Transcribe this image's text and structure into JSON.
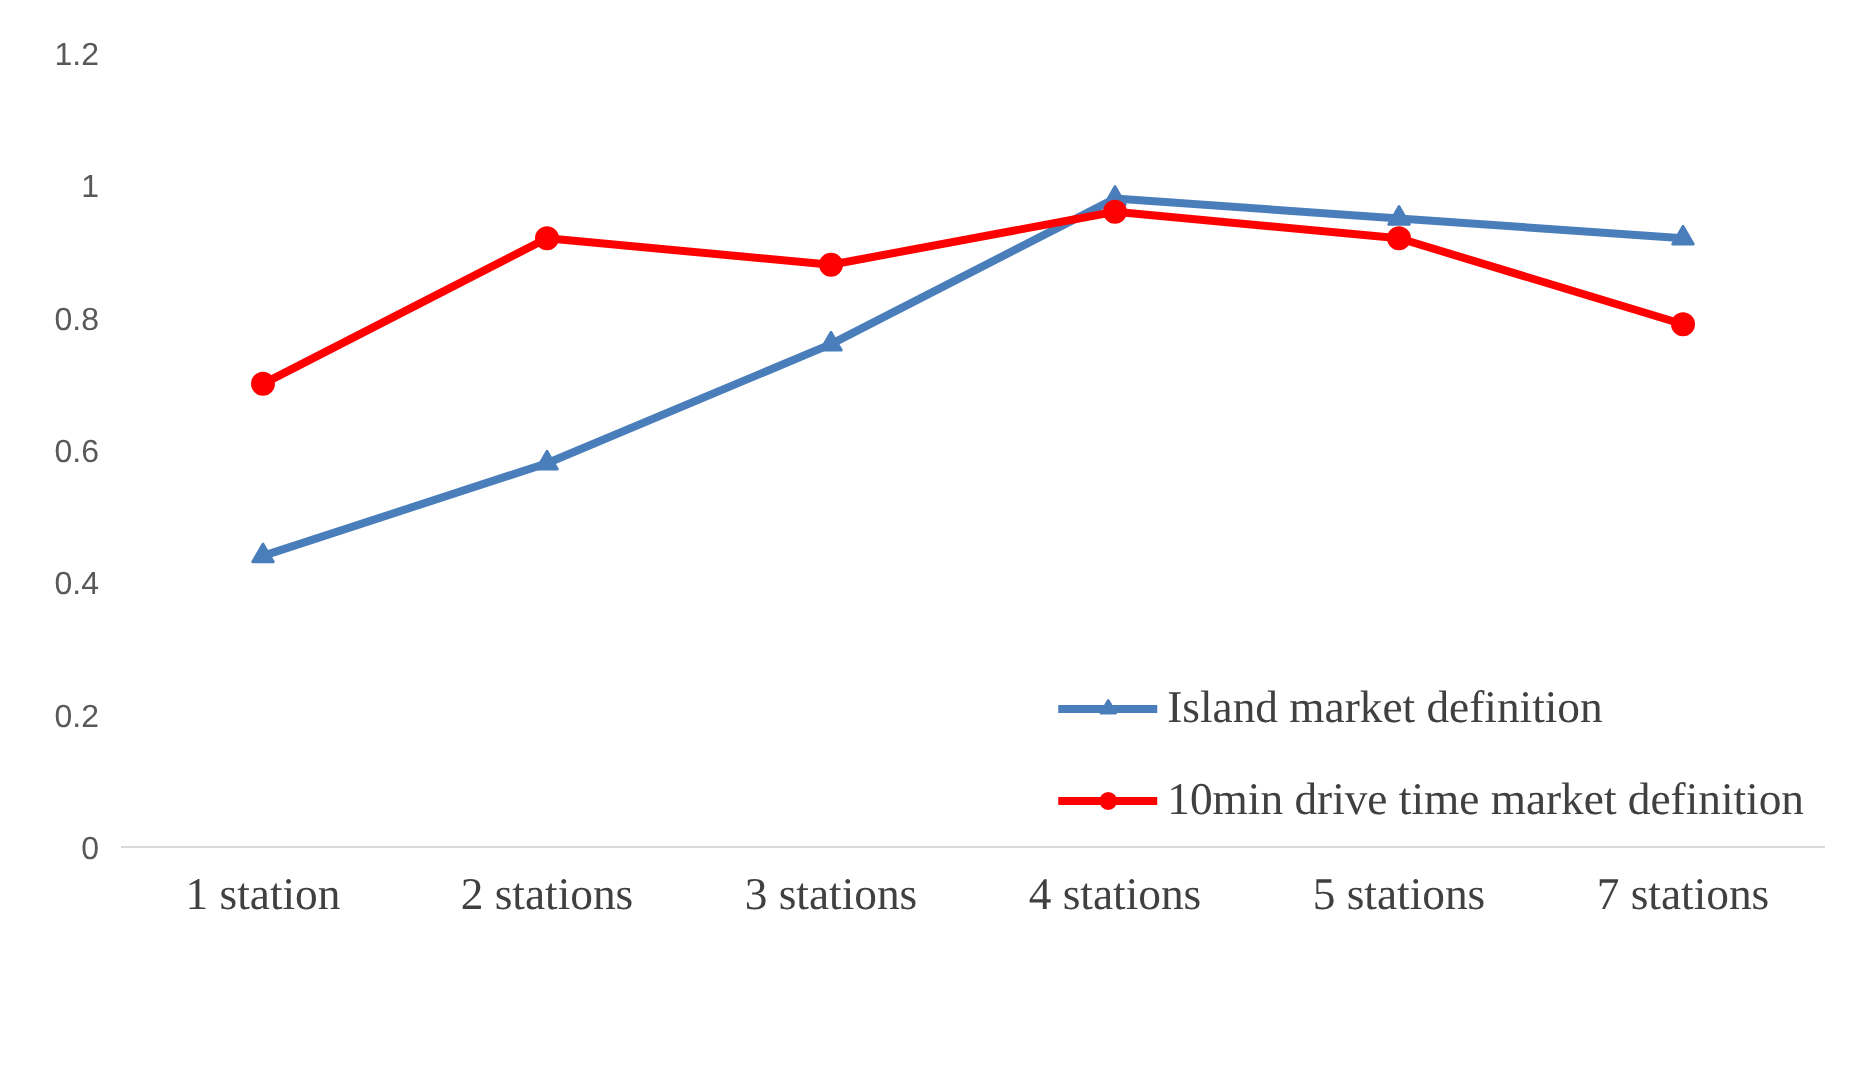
{
  "chart_data": {
    "type": "line",
    "categories": [
      "1 station",
      "2 stations",
      "3 stations",
      "4 stations",
      "5 stations",
      "7 stations"
    ],
    "series": [
      {
        "name": "Island market definition",
        "color": "#4a7ebb",
        "marker": "triangle",
        "values": [
          0.44,
          0.58,
          0.76,
          0.98,
          0.95,
          0.92
        ]
      },
      {
        "name": "10min drive time market definition",
        "color": "#ff0000",
        "marker": "circle",
        "values": [
          0.7,
          0.92,
          0.88,
          0.96,
          0.92,
          0.79
        ]
      }
    ],
    "ylim": [
      0,
      1.2
    ],
    "yticks": [
      0,
      0.2,
      0.4,
      0.6,
      0.8,
      1,
      1.2
    ],
    "grid": false,
    "legend": "bottom right",
    "line_style": "solid"
  }
}
